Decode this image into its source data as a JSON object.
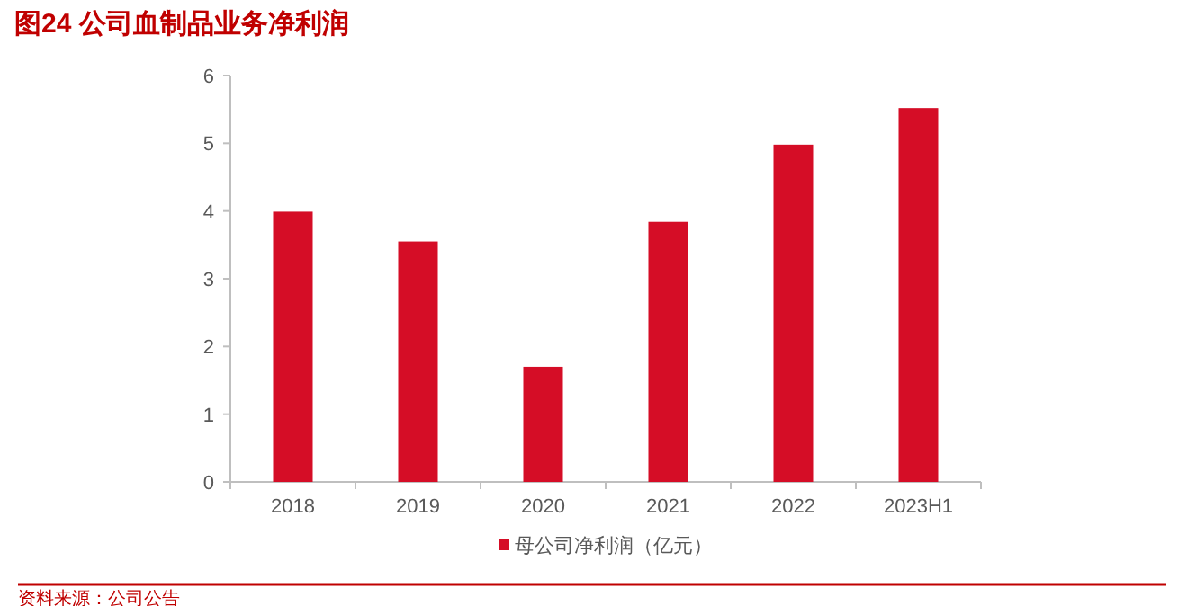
{
  "chart_data": {
    "type": "bar",
    "title": "图24  公司血制品业务净利润",
    "categories": [
      "2018",
      "2019",
      "2020",
      "2021",
      "2022",
      "2023H1"
    ],
    "series": [
      {
        "name": "母公司净利润（亿元）",
        "color": "#d50d26",
        "values": [
          3.99,
          3.55,
          1.7,
          3.84,
          4.98,
          5.52
        ]
      }
    ],
    "ylim": [
      0,
      6
    ],
    "yticks": [
      0,
      1,
      2,
      3,
      4,
      5,
      6
    ],
    "grid": false,
    "legend": "bottom",
    "annotations": [
      "资料来源：公司公告"
    ]
  }
}
